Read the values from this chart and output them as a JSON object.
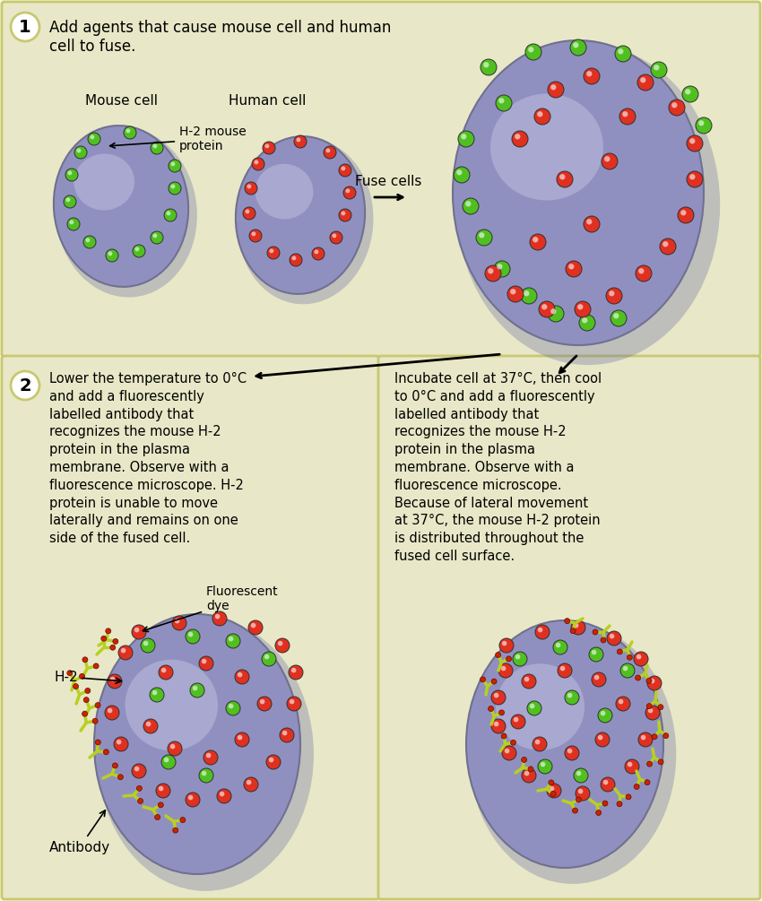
{
  "bg_outer": "#f5f5dc",
  "bg_panel1": "#e8e8c8",
  "bg_panel2_left": "#e8e8c8",
  "bg_panel2_right": "#e8e8c8",
  "cell_color_base": "#9090c0",
  "cell_highlight": "#c0c0e0",
  "cell_shadow": "#6060a0",
  "green_protein": "#50c020",
  "red_protein": "#e03020",
  "antibody_color": "#b8d020",
  "border_color": "#c8c870",
  "step1_label": "1",
  "step2_label": "2",
  "title_text": "Add agents that cause mouse cell and human\ncell to fuse.",
  "mouse_cell_label": "Mouse cell",
  "human_cell_label": "Human cell",
  "h2_label": "H-2 mouse\nprotein",
  "fuse_label": "Fuse cells",
  "step2_left_text": "Lower the temperature to 0°C\nand add a fluorescently\nlabelled antibody that\nrecognizes the mouse H-2\nprotein in the plasma\nmembrane. Observe with a\nfluorescence microscope. H-2\nprotein is unable to move\nlaterally and remains on one\nside of the fused cell.",
  "step2_right_text": "Incubate cell at 37°C, then cool\nto 0°C and add a fluorescently\nlabelled antibody that\nrecognizes the mouse H-2\nprotein in the plasma\nmembrane. Observe with a\nfluorescence microscope.\nBecause of lateral movement\nat 37°C, the mouse H-2 protein\nis distributed throughout the\nfused cell surface.",
  "fluorescent_label": "Fluorescent\ndye",
  "h2_arrow_label": "H-2",
  "antibody_label": "Antibody"
}
